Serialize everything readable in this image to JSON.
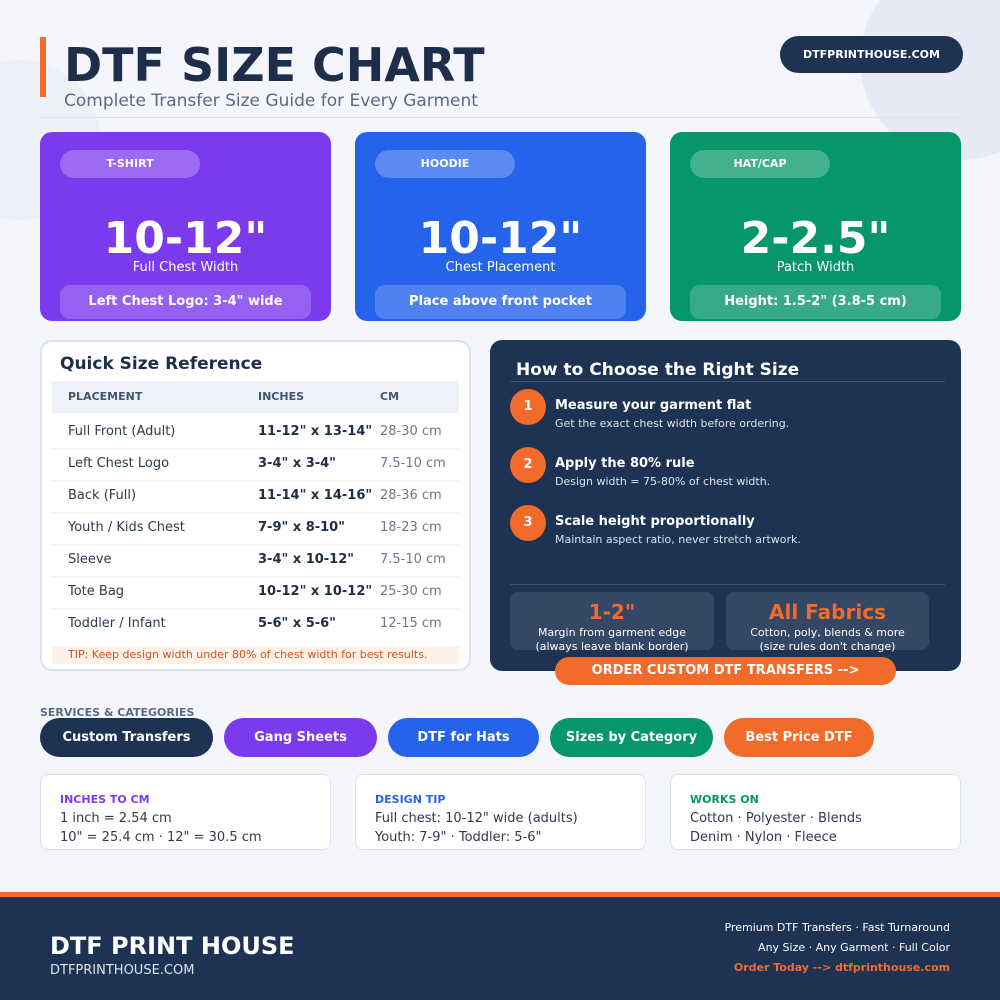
{
  "header": {
    "title": "DTF SIZE CHART",
    "subtitle": "Complete Transfer Size Guide for Every Garment",
    "badge": "DTFPRINTHOUSE.COM"
  },
  "cards": [
    {
      "tag": "T-SHIRT",
      "size": "10-12\"",
      "caption": "Full Chest Width",
      "note": "Left Chest Logo: 3-4\" wide"
    },
    {
      "tag": "HOODIE",
      "size": "10-12\"",
      "caption": "Chest Placement",
      "note": "Place above front pocket"
    },
    {
      "tag": "HAT/CAP",
      "size": "2-2.5\"",
      "caption": "Patch Width",
      "note": "Height: 1.5-2\" (3.8-5 cm)"
    }
  ],
  "reference": {
    "title": "Quick Size Reference",
    "columns": [
      "PLACEMENT",
      "INCHES",
      "CM"
    ],
    "rows": [
      [
        "Full Front (Adult)",
        "11-12\" x 13-14\"",
        "28-30 cm"
      ],
      [
        "Left Chest Logo",
        "3-4\" x 3-4\"",
        "7.5-10 cm"
      ],
      [
        "Back (Full)",
        "11-14\" x 14-16\"",
        "28-36 cm"
      ],
      [
        "Youth / Kids Chest",
        "7-9\" x 8-10\"",
        "18-23 cm"
      ],
      [
        "Sleeve",
        "3-4\" x 10-12\"",
        "7.5-10 cm"
      ],
      [
        "Tote Bag",
        "10-12\" x 10-12\"",
        "25-30 cm"
      ],
      [
        "Toddler / Infant",
        "5-6\" x 5-6\"",
        "12-15 cm"
      ]
    ],
    "tip": "TIP: Keep design width under 80% of chest width for best results."
  },
  "guide": {
    "title": "How to Choose the Right Size",
    "steps": [
      {
        "number": "1",
        "title": "Measure your garment flat",
        "text": "Get the exact chest width before ordering."
      },
      {
        "number": "2",
        "title": "Apply the 80% rule",
        "text": "Design width = 75-80% of chest width."
      },
      {
        "number": "3",
        "title": "Scale height proportionally",
        "text": "Maintain aspect ratio, never stretch artwork."
      }
    ],
    "stats": [
      {
        "value": "1-2\"",
        "lines": [
          "Margin from garment edge",
          "(always leave blank border)"
        ]
      },
      {
        "value": "All Fabrics",
        "lines": [
          "Cotton, poly, blends & more",
          "(size rules don't change)"
        ]
      }
    ],
    "button": "ORDER CUSTOM DTF TRANSFERS -->"
  },
  "services": {
    "label": "SERVICES & CATEGORIES",
    "items": [
      "Custom Transfers",
      "Gang Sheets",
      "DTF for Hats",
      "Sizes by Category",
      "Best Price DTF"
    ]
  },
  "info": [
    {
      "title": "INCHES TO CM",
      "lines": [
        "1 inch = 2.54 cm",
        "10\" = 25.4 cm · 12\" = 30.5 cm"
      ]
    },
    {
      "title": "DESIGN TIP",
      "lines": [
        "Full chest: 10-12\" wide (adults)",
        "Youth: 7-9\" · Toddler: 5-6\""
      ]
    },
    {
      "title": "WORKS ON",
      "lines": [
        "Cotton · Polyester · Blends",
        "Denim · Nylon · Fleece"
      ]
    }
  ],
  "footer": {
    "brand": "DTF PRINT HOUSE",
    "url": "DTFPRINTHOUSE.COM",
    "lines": [
      "Premium DTF Transfers · Fast Turnaround",
      "Any Size · Any Garment · Full Color",
      "Order Today --> dtfprinthouse.com"
    ]
  }
}
